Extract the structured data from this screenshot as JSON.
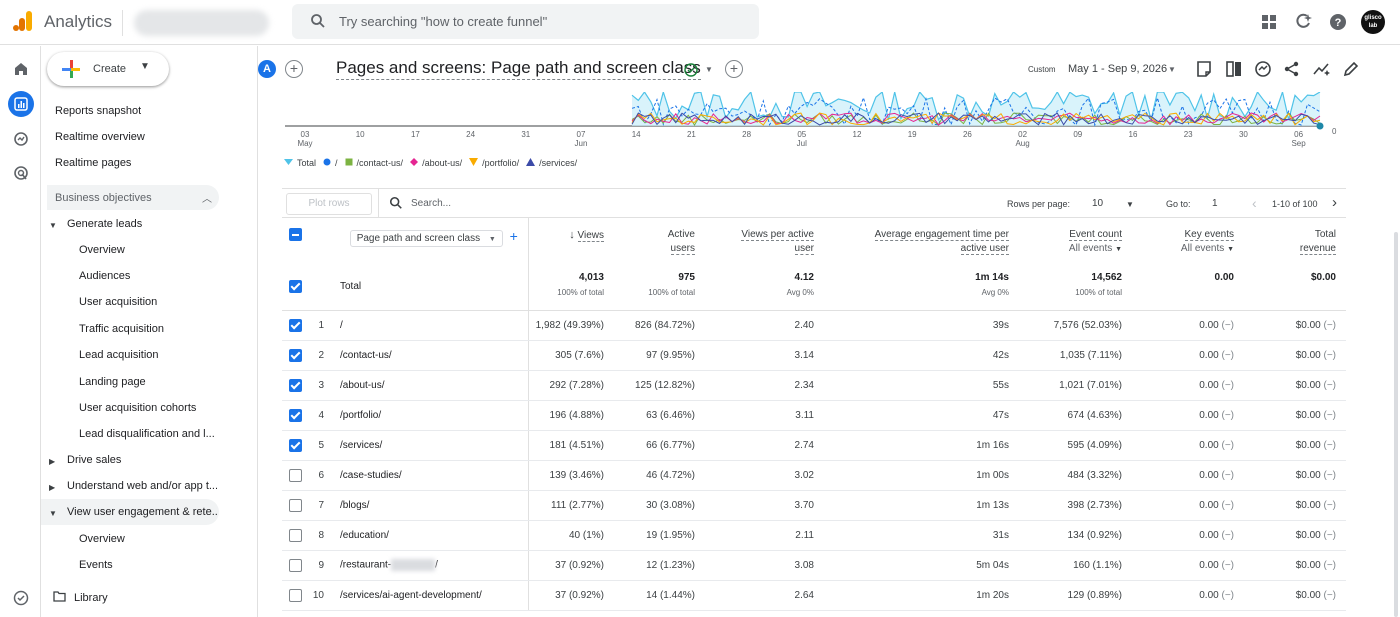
{
  "app": {
    "title": "Analytics",
    "search_placeholder": "Try searching \"how to create funnel\"",
    "avatar_text": "glisco lab"
  },
  "sidenav": {
    "create_label": "Create",
    "items": [
      "Reports snapshot",
      "Realtime overview",
      "Realtime pages"
    ],
    "section": "Business objectives",
    "generate_leads": "Generate leads",
    "generate_leads_children": [
      "Overview",
      "Audiences",
      "User acquisition",
      "Traffic acquisition",
      "Lead acquisition",
      "Landing page",
      "User acquisition cohorts",
      "Lead disqualification and l..."
    ],
    "drive_sales": "Drive sales",
    "understand": "Understand web and/or app t...",
    "view_engagement": "View user engagement & rete...",
    "engagement_children": [
      "Overview",
      "Events"
    ],
    "library": "Library"
  },
  "header": {
    "comparison_chip": "A",
    "title": "Pages and screens: Page path and screen class",
    "date_label": "Custom",
    "date_range": "May 1 - Sep 9, 2026"
  },
  "chart_data": {
    "type": "line",
    "x_tick_labels": [
      {
        "top": "03",
        "bottom": "May"
      },
      {
        "top": "10",
        "bottom": ""
      },
      {
        "top": "17",
        "bottom": ""
      },
      {
        "top": "24",
        "bottom": ""
      },
      {
        "top": "31",
        "bottom": ""
      },
      {
        "top": "07",
        "bottom": "Jun"
      },
      {
        "top": "14",
        "bottom": ""
      },
      {
        "top": "21",
        "bottom": ""
      },
      {
        "top": "28",
        "bottom": ""
      },
      {
        "top": "05",
        "bottom": "Jul"
      },
      {
        "top": "12",
        "bottom": ""
      },
      {
        "top": "19",
        "bottom": ""
      },
      {
        "top": "26",
        "bottom": ""
      },
      {
        "top": "02",
        "bottom": "Aug"
      },
      {
        "top": "09",
        "bottom": ""
      },
      {
        "top": "16",
        "bottom": ""
      },
      {
        "top": "23",
        "bottom": ""
      },
      {
        "top": "30",
        "bottom": ""
      },
      {
        "top": "06",
        "bottom": "Sep"
      }
    ],
    "y_tick_label": "0",
    "series": [
      {
        "name": "Total",
        "color": "#4fc3e8"
      },
      {
        "name": "/",
        "color": "#1a73e8"
      },
      {
        "name": "/contact-us/",
        "color": "#7cb342"
      },
      {
        "name": "/about-us/",
        "color": "#e52592"
      },
      {
        "name": "/portfolio/",
        "color": "#f9ab00"
      },
      {
        "name": "/services/",
        "color": "#3c4ba8"
      }
    ]
  },
  "table_toolbar": {
    "plot_rows": "Plot rows",
    "search_placeholder": "Search...",
    "rows_per_page_label": "Rows per page:",
    "rows_per_page": "10",
    "goto_label": "Go to:",
    "goto_value": "1",
    "pagination": "1-10 of 100"
  },
  "columns": {
    "dimension": "Page path and screen class",
    "views": "Views",
    "active_users_1": "Active",
    "active_users_2": "users",
    "vpau_1": "Views per active",
    "vpau_2": "user",
    "aet_1": "Average engagement time per",
    "aet_2": "active user",
    "event_count": "Event count",
    "event_count_sub": "All events",
    "key_events": "Key events",
    "key_events_sub": "All events",
    "total_revenue_1": "Total",
    "total_revenue_2": "revenue"
  },
  "totals": {
    "label": "Total",
    "views": "4,013",
    "views_sub": "100% of total",
    "active_users": "975",
    "active_users_sub": "100% of total",
    "vpau": "4.12",
    "vpau_sub": "Avg 0%",
    "aet": "1m 14s",
    "aet_sub": "Avg 0%",
    "event_count": "14,562",
    "event_count_sub": "100% of total",
    "key_events": "0.00",
    "total_revenue": "$0.00"
  },
  "rows": [
    {
      "idx": "1",
      "path": "/",
      "views": "1,982 (49.39%)",
      "users": "826 (84.72%)",
      "vpau": "2.40",
      "aet": "39s",
      "events": "7,576 (52.03%)",
      "key": "0.00",
      "rev": "$0.00",
      "dash": "(−)",
      "checked": true
    },
    {
      "idx": "2",
      "path": "/contact-us/",
      "views": "305 (7.6%)",
      "users": "97 (9.95%)",
      "vpau": "3.14",
      "aet": "42s",
      "events": "1,035 (7.11%)",
      "key": "0.00",
      "rev": "$0.00",
      "dash": "(−)",
      "checked": true
    },
    {
      "idx": "3",
      "path": "/about-us/",
      "views": "292 (7.28%)",
      "users": "125 (12.82%)",
      "vpau": "2.34",
      "aet": "55s",
      "events": "1,021 (7.01%)",
      "key": "0.00",
      "rev": "$0.00",
      "dash": "(−)",
      "checked": true
    },
    {
      "idx": "4",
      "path": "/portfolio/",
      "views": "196 (4.88%)",
      "users": "63 (6.46%)",
      "vpau": "3.11",
      "aet": "47s",
      "events": "674 (4.63%)",
      "key": "0.00",
      "rev": "$0.00",
      "dash": "(−)",
      "checked": true
    },
    {
      "idx": "5",
      "path": "/services/",
      "views": "181 (4.51%)",
      "users": "66 (6.77%)",
      "vpau": "2.74",
      "aet": "1m 16s",
      "events": "595 (4.09%)",
      "key": "0.00",
      "rev": "$0.00",
      "dash": "(−)",
      "checked": true
    },
    {
      "idx": "6",
      "path": "/case-studies/",
      "views": "139 (3.46%)",
      "users": "46 (4.72%)",
      "vpau": "3.02",
      "aet": "1m 00s",
      "events": "484 (3.32%)",
      "key": "0.00",
      "rev": "$0.00",
      "dash": "(−)",
      "checked": false
    },
    {
      "idx": "7",
      "path": "/blogs/",
      "views": "111 (2.77%)",
      "users": "30 (3.08%)",
      "vpau": "3.70",
      "aet": "1m 13s",
      "events": "398 (2.73%)",
      "key": "0.00",
      "rev": "$0.00",
      "dash": "(−)",
      "checked": false
    },
    {
      "idx": "8",
      "path": "/education/",
      "views": "40 (1%)",
      "users": "19 (1.95%)",
      "vpau": "2.11",
      "aet": "31s",
      "events": "134 (0.92%)",
      "key": "0.00",
      "rev": "$0.00",
      "dash": "(−)",
      "checked": false
    },
    {
      "idx": "9",
      "path": "/restaurant-",
      "path_tail": "/",
      "views": "37 (0.92%)",
      "users": "12 (1.23%)",
      "vpau": "3.08",
      "aet": "5m 04s",
      "events": "160 (1.1%)",
      "key": "0.00",
      "rev": "$0.00",
      "dash": "(−)",
      "checked": false
    },
    {
      "idx": "10",
      "path": "/services/ai-agent-development/",
      "views": "37 (0.92%)",
      "users": "14 (1.44%)",
      "vpau": "2.64",
      "aet": "1m 20s",
      "events": "129 (0.89%)",
      "key": "0.00",
      "rev": "$0.00",
      "dash": "(−)",
      "checked": false
    }
  ]
}
